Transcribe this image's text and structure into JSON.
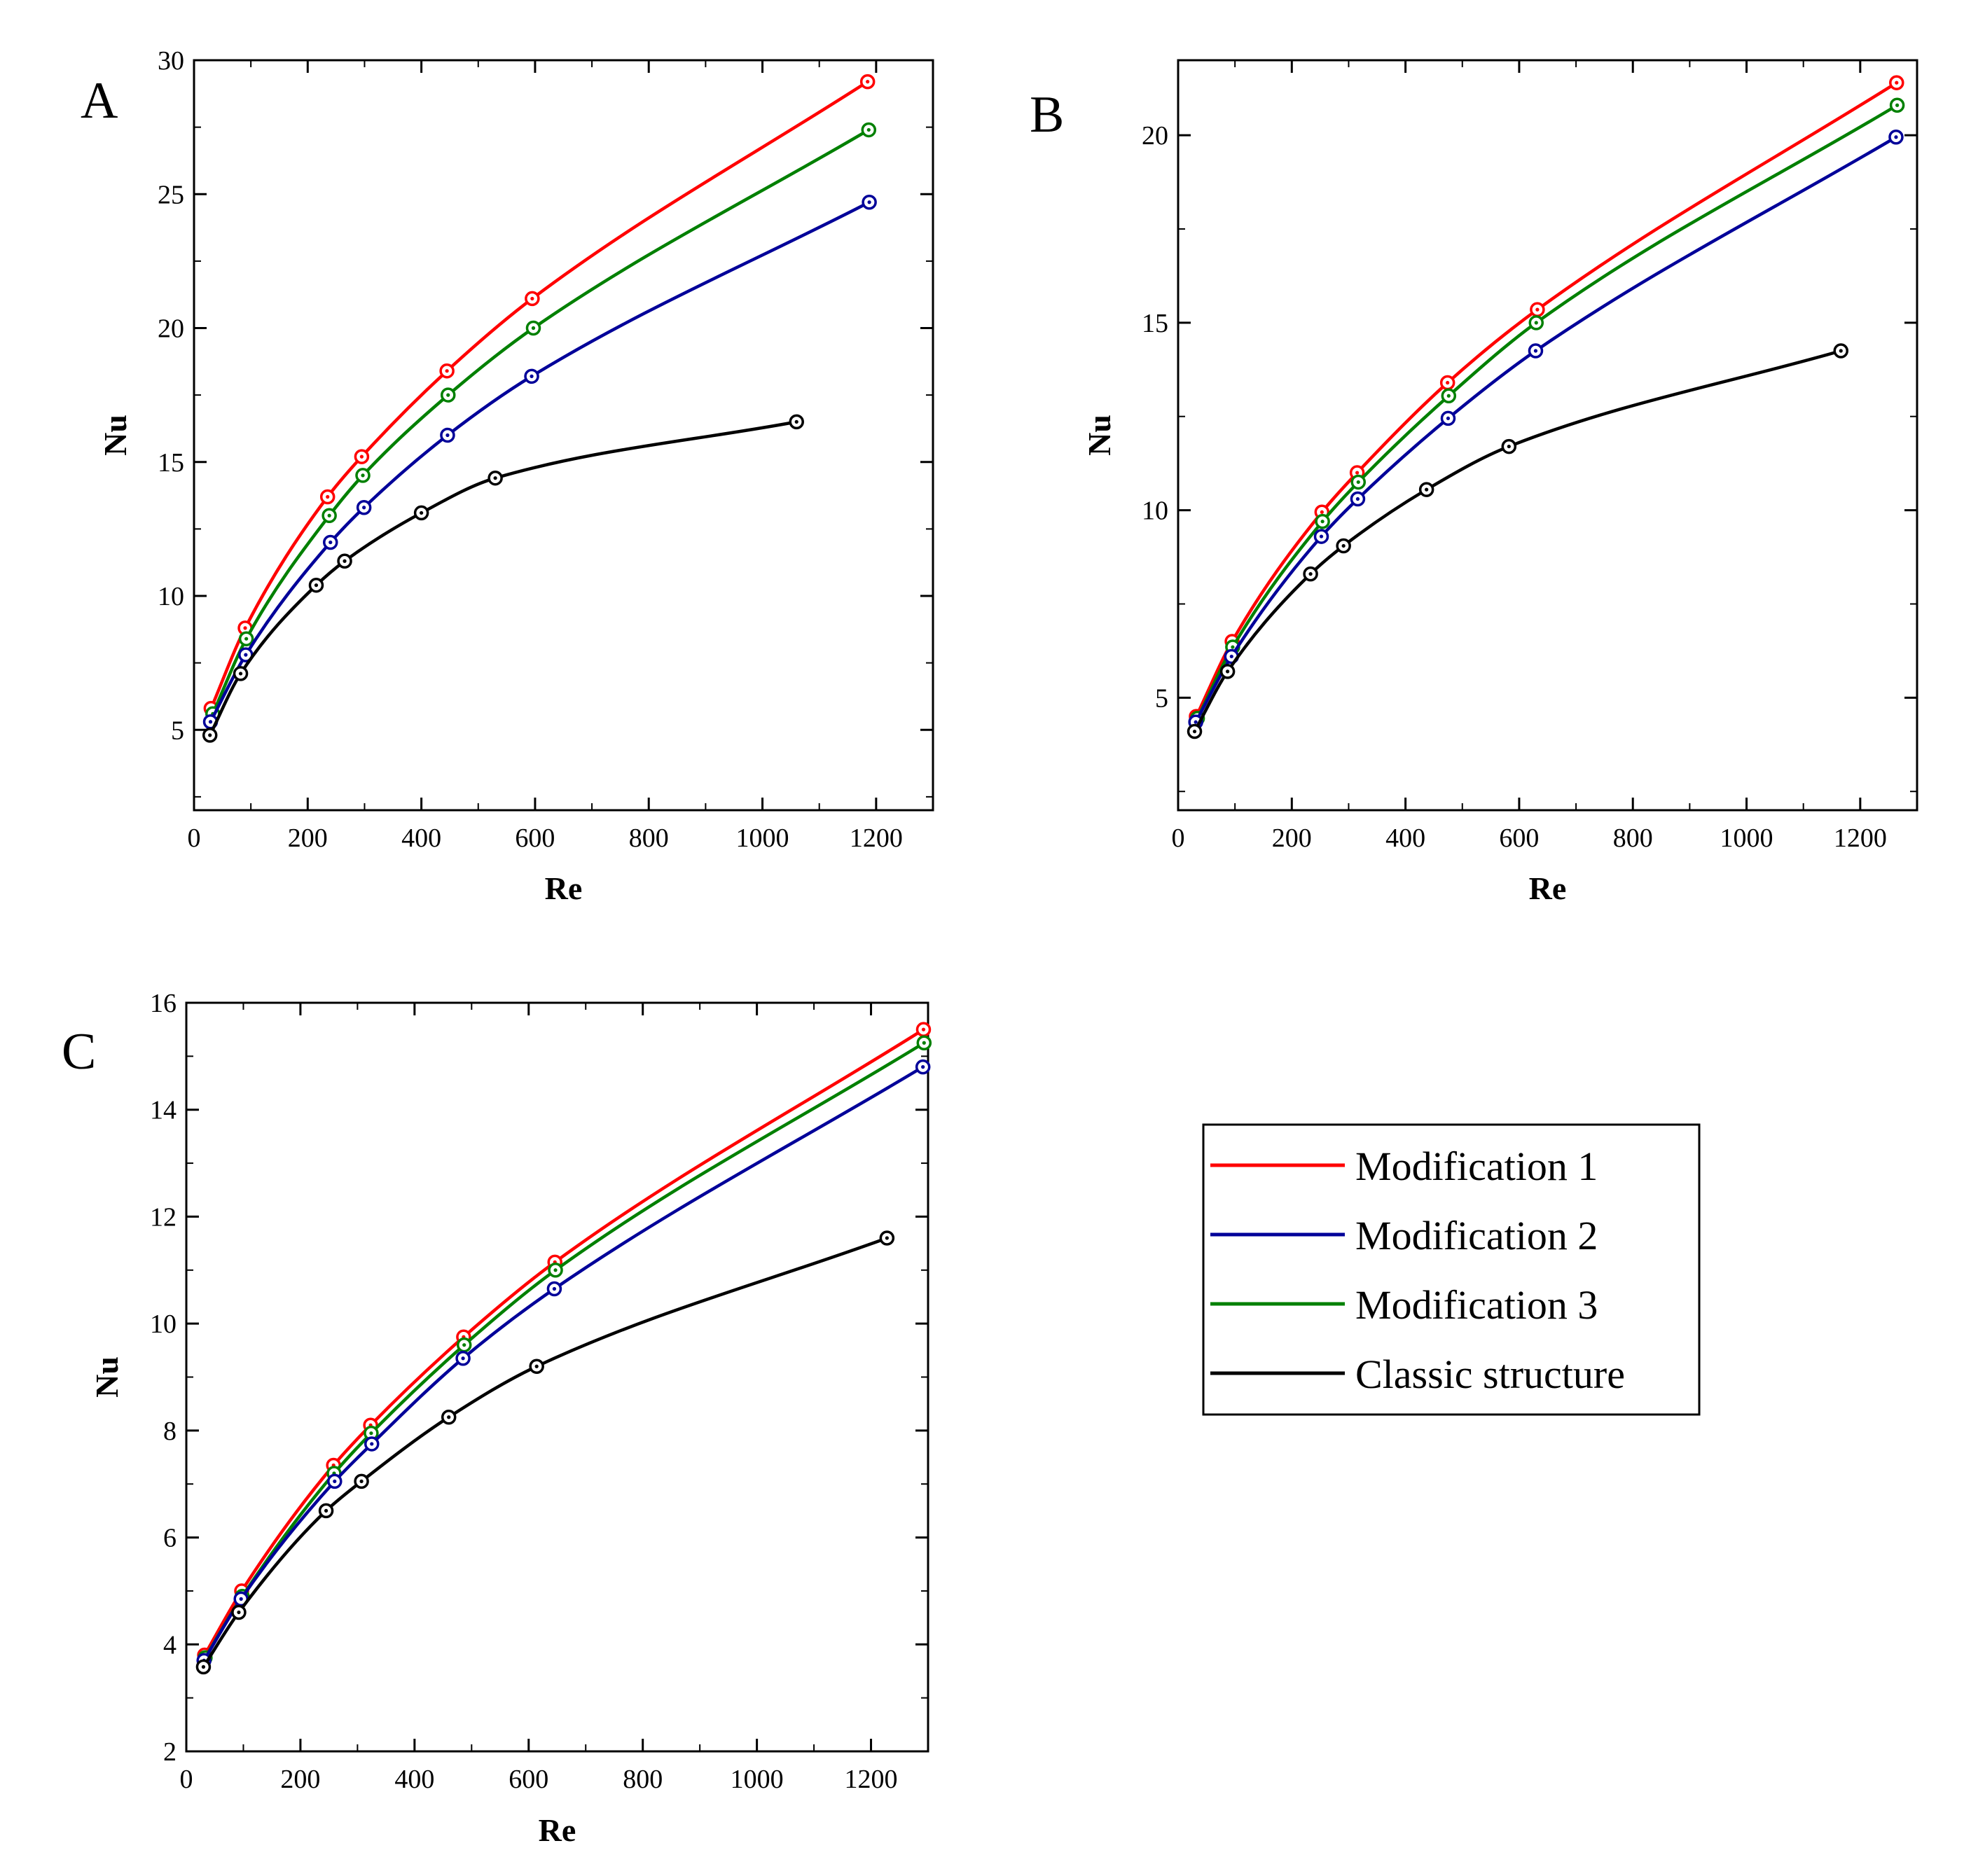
{
  "figure": {
    "legend": {
      "title": "",
      "entries": [
        {
          "label": "Modification 1",
          "color": "#ff0000"
        },
        {
          "label": "Modification 2",
          "color": "#000099"
        },
        {
          "label": "Modification 3",
          "color": "#008000"
        },
        {
          "label": "Classic structure",
          "color": "#000000"
        }
      ]
    }
  },
  "chart_data": [
    {
      "type": "line",
      "panel": "A",
      "title": "",
      "xlabel": "Re",
      "ylabel": "Nu",
      "xlim": [
        0,
        1300
      ],
      "ylim": [
        2,
        30
      ],
      "xticks": [
        0,
        200,
        400,
        600,
        800,
        1000,
        1200
      ],
      "yticks": [
        5,
        10,
        15,
        20,
        25,
        30
      ],
      "grid": false,
      "series": [
        {
          "name": "Modification 1",
          "color": "#ff0000",
          "x": [
            30,
            90,
            235,
            295,
            445,
            595,
            1185
          ],
          "y": [
            5.8,
            8.8,
            13.7,
            15.2,
            18.4,
            21.1,
            29.2
          ]
        },
        {
          "name": "Modification 3",
          "color": "#008000",
          "x": [
            33,
            92,
            238,
            297,
            447,
            597,
            1187
          ],
          "y": [
            5.6,
            8.4,
            13.0,
            14.5,
            17.5,
            20.0,
            27.4
          ]
        },
        {
          "name": "Modification 2",
          "color": "#000099",
          "x": [
            29,
            91,
            240,
            299,
            446,
            594,
            1188
          ],
          "y": [
            5.3,
            7.8,
            12.0,
            13.3,
            16.0,
            18.2,
            24.7
          ]
        },
        {
          "name": "Classic structure",
          "color": "#000000",
          "x": [
            28,
            82,
            215,
            265,
            400,
            530,
            1060
          ],
          "y": [
            4.8,
            7.1,
            10.4,
            11.3,
            13.1,
            14.4,
            16.5
          ]
        }
      ]
    },
    {
      "type": "line",
      "panel": "B",
      "title": "",
      "xlabel": "Re",
      "ylabel": "Nu",
      "xlim": [
        0,
        1300
      ],
      "ylim": [
        2,
        22
      ],
      "xticks": [
        0,
        200,
        400,
        600,
        800,
        1000,
        1200
      ],
      "yticks": [
        5,
        10,
        15,
        20
      ],
      "grid": false,
      "series": [
        {
          "name": "Modification 1",
          "color": "#ff0000",
          "x": [
            32,
            95,
            253,
            315,
            474,
            632,
            1264
          ],
          "y": [
            4.5,
            6.5,
            9.95,
            11.0,
            13.4,
            15.35,
            21.4
          ]
        },
        {
          "name": "Modification 3",
          "color": "#008000",
          "x": [
            34,
            96,
            254,
            317,
            476,
            630,
            1265
          ],
          "y": [
            4.45,
            6.35,
            9.7,
            10.75,
            13.05,
            15.0,
            20.8
          ]
        },
        {
          "name": "Modification 2",
          "color": "#000099",
          "x": [
            31,
            94,
            252,
            316,
            475,
            629,
            1263
          ],
          "y": [
            4.35,
            6.1,
            9.3,
            10.3,
            12.45,
            14.25,
            19.95
          ]
        },
        {
          "name": "Classic structure",
          "color": "#000000",
          "x": [
            29,
            87,
            233,
            291,
            437,
            582,
            1166
          ],
          "y": [
            4.1,
            5.7,
            8.3,
            9.05,
            10.55,
            11.7,
            14.25
          ]
        }
      ]
    },
    {
      "type": "line",
      "panel": "C",
      "title": "",
      "xlabel": "Re",
      "ylabel": "Nu",
      "xlim": [
        0,
        1300
      ],
      "ylim": [
        2,
        16
      ],
      "xticks": [
        0,
        200,
        400,
        600,
        800,
        1000,
        1200
      ],
      "yticks": [
        2,
        4,
        6,
        8,
        10,
        12,
        14,
        16
      ],
      "grid": false,
      "series": [
        {
          "name": "Modification 1",
          "color": "#ff0000",
          "x": [
            32,
            97,
            258,
            323,
            486,
            646,
            1292
          ],
          "y": [
            3.8,
            5.0,
            7.35,
            8.1,
            9.75,
            11.15,
            15.5
          ]
        },
        {
          "name": "Modification 3",
          "color": "#008000",
          "x": [
            33,
            98,
            259,
            324,
            487,
            647,
            1293
          ],
          "y": [
            3.75,
            4.9,
            7.2,
            7.95,
            9.6,
            11.0,
            15.25
          ]
        },
        {
          "name": "Modification 2",
          "color": "#000099",
          "x": [
            31,
            96,
            260,
            325,
            485,
            645,
            1291
          ],
          "y": [
            3.7,
            4.85,
            7.05,
            7.75,
            9.35,
            10.65,
            14.8
          ]
        },
        {
          "name": "Classic structure",
          "color": "#000000",
          "x": [
            30,
            92,
            245,
            307,
            460,
            614,
            1228
          ],
          "y": [
            3.58,
            4.6,
            6.5,
            7.05,
            8.25,
            9.2,
            11.6
          ]
        }
      ]
    }
  ]
}
